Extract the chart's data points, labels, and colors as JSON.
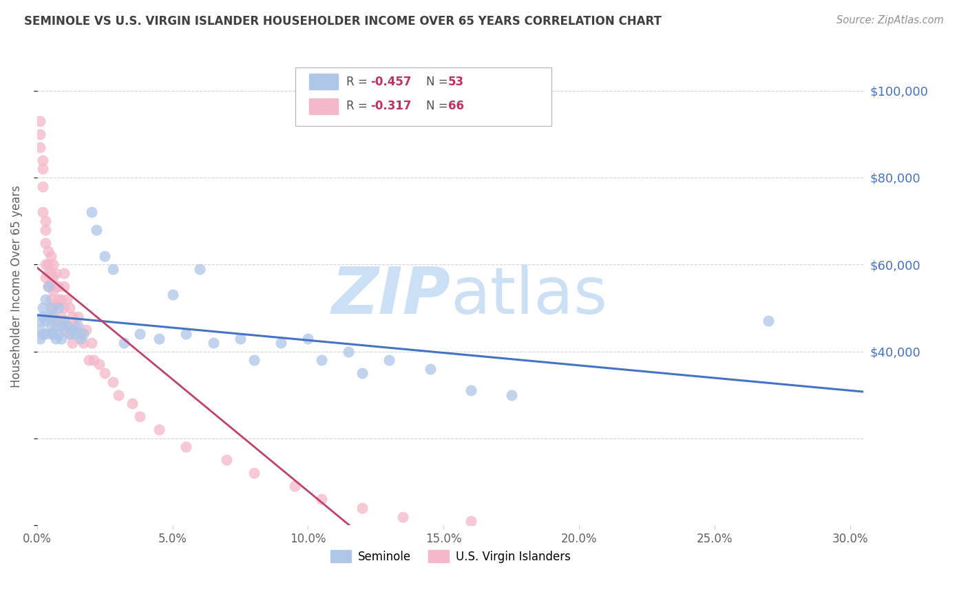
{
  "title": "SEMINOLE VS U.S. VIRGIN ISLANDER HOUSEHOLDER INCOME OVER 65 YEARS CORRELATION CHART",
  "source": "Source: ZipAtlas.com",
  "ylabel": "Householder Income Over 65 years",
  "xlim": [
    0.0,
    0.305
  ],
  "ylim": [
    0,
    110000
  ],
  "xticks": [
    0.0,
    0.05,
    0.1,
    0.15,
    0.2,
    0.25,
    0.3
  ],
  "xtick_labels": [
    "0.0%",
    "5.0%",
    "10.0%",
    "15.0%",
    "20.0%",
    "25.0%",
    "30.0%"
  ],
  "yticks_right": [
    40000,
    60000,
    80000,
    100000
  ],
  "ytick_right_labels": [
    "$40,000",
    "$60,000",
    "$80,000",
    "$100,000"
  ],
  "seminole_color": "#aec6e8",
  "virgin_color": "#f4b8c8",
  "seminole_line_color": "#4472c4",
  "virgin_line_color": "#c0406a",
  "title_color": "#404040",
  "source_color": "#909090",
  "axis_label_color": "#606060",
  "ytick_color": "#4472c4",
  "watermark_zip": "ZIP",
  "watermark_atlas": "atlas",
  "watermark_color": "#cce0f5",
  "background_color": "#ffffff",
  "grid_color": "#d0d0de",
  "legend_R_color": "#c03060",
  "legend_N_color": "#c03060",
  "seminole_x": [
    0.001,
    0.001,
    0.001,
    0.002,
    0.002,
    0.002,
    0.003,
    0.003,
    0.003,
    0.004,
    0.004,
    0.005,
    0.005,
    0.005,
    0.006,
    0.006,
    0.007,
    0.007,
    0.008,
    0.008,
    0.009,
    0.009,
    0.01,
    0.011,
    0.012,
    0.013,
    0.014,
    0.015,
    0.016,
    0.017,
    0.02,
    0.022,
    0.025,
    0.028,
    0.032,
    0.038,
    0.045,
    0.05,
    0.055,
    0.06,
    0.065,
    0.075,
    0.08,
    0.09,
    0.1,
    0.105,
    0.115,
    0.12,
    0.13,
    0.145,
    0.16,
    0.175,
    0.27
  ],
  "seminole_y": [
    47000,
    45000,
    43000,
    50000,
    48000,
    44000,
    52000,
    47000,
    44000,
    55000,
    48000,
    50000,
    46000,
    44000,
    48000,
    44000,
    46000,
    43000,
    50000,
    44000,
    46000,
    43000,
    47000,
    46000,
    44000,
    45000,
    44000,
    46000,
    43000,
    44000,
    72000,
    68000,
    62000,
    59000,
    42000,
    44000,
    43000,
    53000,
    44000,
    59000,
    42000,
    43000,
    38000,
    42000,
    43000,
    38000,
    40000,
    35000,
    38000,
    36000,
    31000,
    30000,
    47000
  ],
  "virgin_x": [
    0.001,
    0.001,
    0.001,
    0.002,
    0.002,
    0.002,
    0.002,
    0.003,
    0.003,
    0.003,
    0.003,
    0.003,
    0.004,
    0.004,
    0.004,
    0.004,
    0.005,
    0.005,
    0.005,
    0.005,
    0.005,
    0.006,
    0.006,
    0.006,
    0.006,
    0.007,
    0.007,
    0.007,
    0.008,
    0.008,
    0.008,
    0.009,
    0.009,
    0.01,
    0.01,
    0.01,
    0.01,
    0.011,
    0.011,
    0.012,
    0.012,
    0.013,
    0.013,
    0.014,
    0.015,
    0.016,
    0.017,
    0.018,
    0.019,
    0.02,
    0.021,
    0.023,
    0.025,
    0.028,
    0.03,
    0.035,
    0.038,
    0.045,
    0.055,
    0.07,
    0.08,
    0.095,
    0.105,
    0.12,
    0.135,
    0.16
  ],
  "virgin_y": [
    93000,
    90000,
    87000,
    84000,
    82000,
    78000,
    72000,
    70000,
    68000,
    65000,
    60000,
    57000,
    63000,
    60000,
    58000,
    55000,
    62000,
    58000,
    56000,
    52000,
    48000,
    60000,
    57000,
    54000,
    50000,
    58000,
    55000,
    51000,
    55000,
    52000,
    47000,
    52000,
    48000,
    58000,
    55000,
    50000,
    45000,
    52000,
    46000,
    50000,
    44000,
    48000,
    42000,
    46000,
    48000,
    44000,
    42000,
    45000,
    38000,
    42000,
    38000,
    37000,
    35000,
    33000,
    30000,
    28000,
    25000,
    22000,
    18000,
    15000,
    12000,
    9000,
    6000,
    4000,
    2000,
    1000
  ]
}
